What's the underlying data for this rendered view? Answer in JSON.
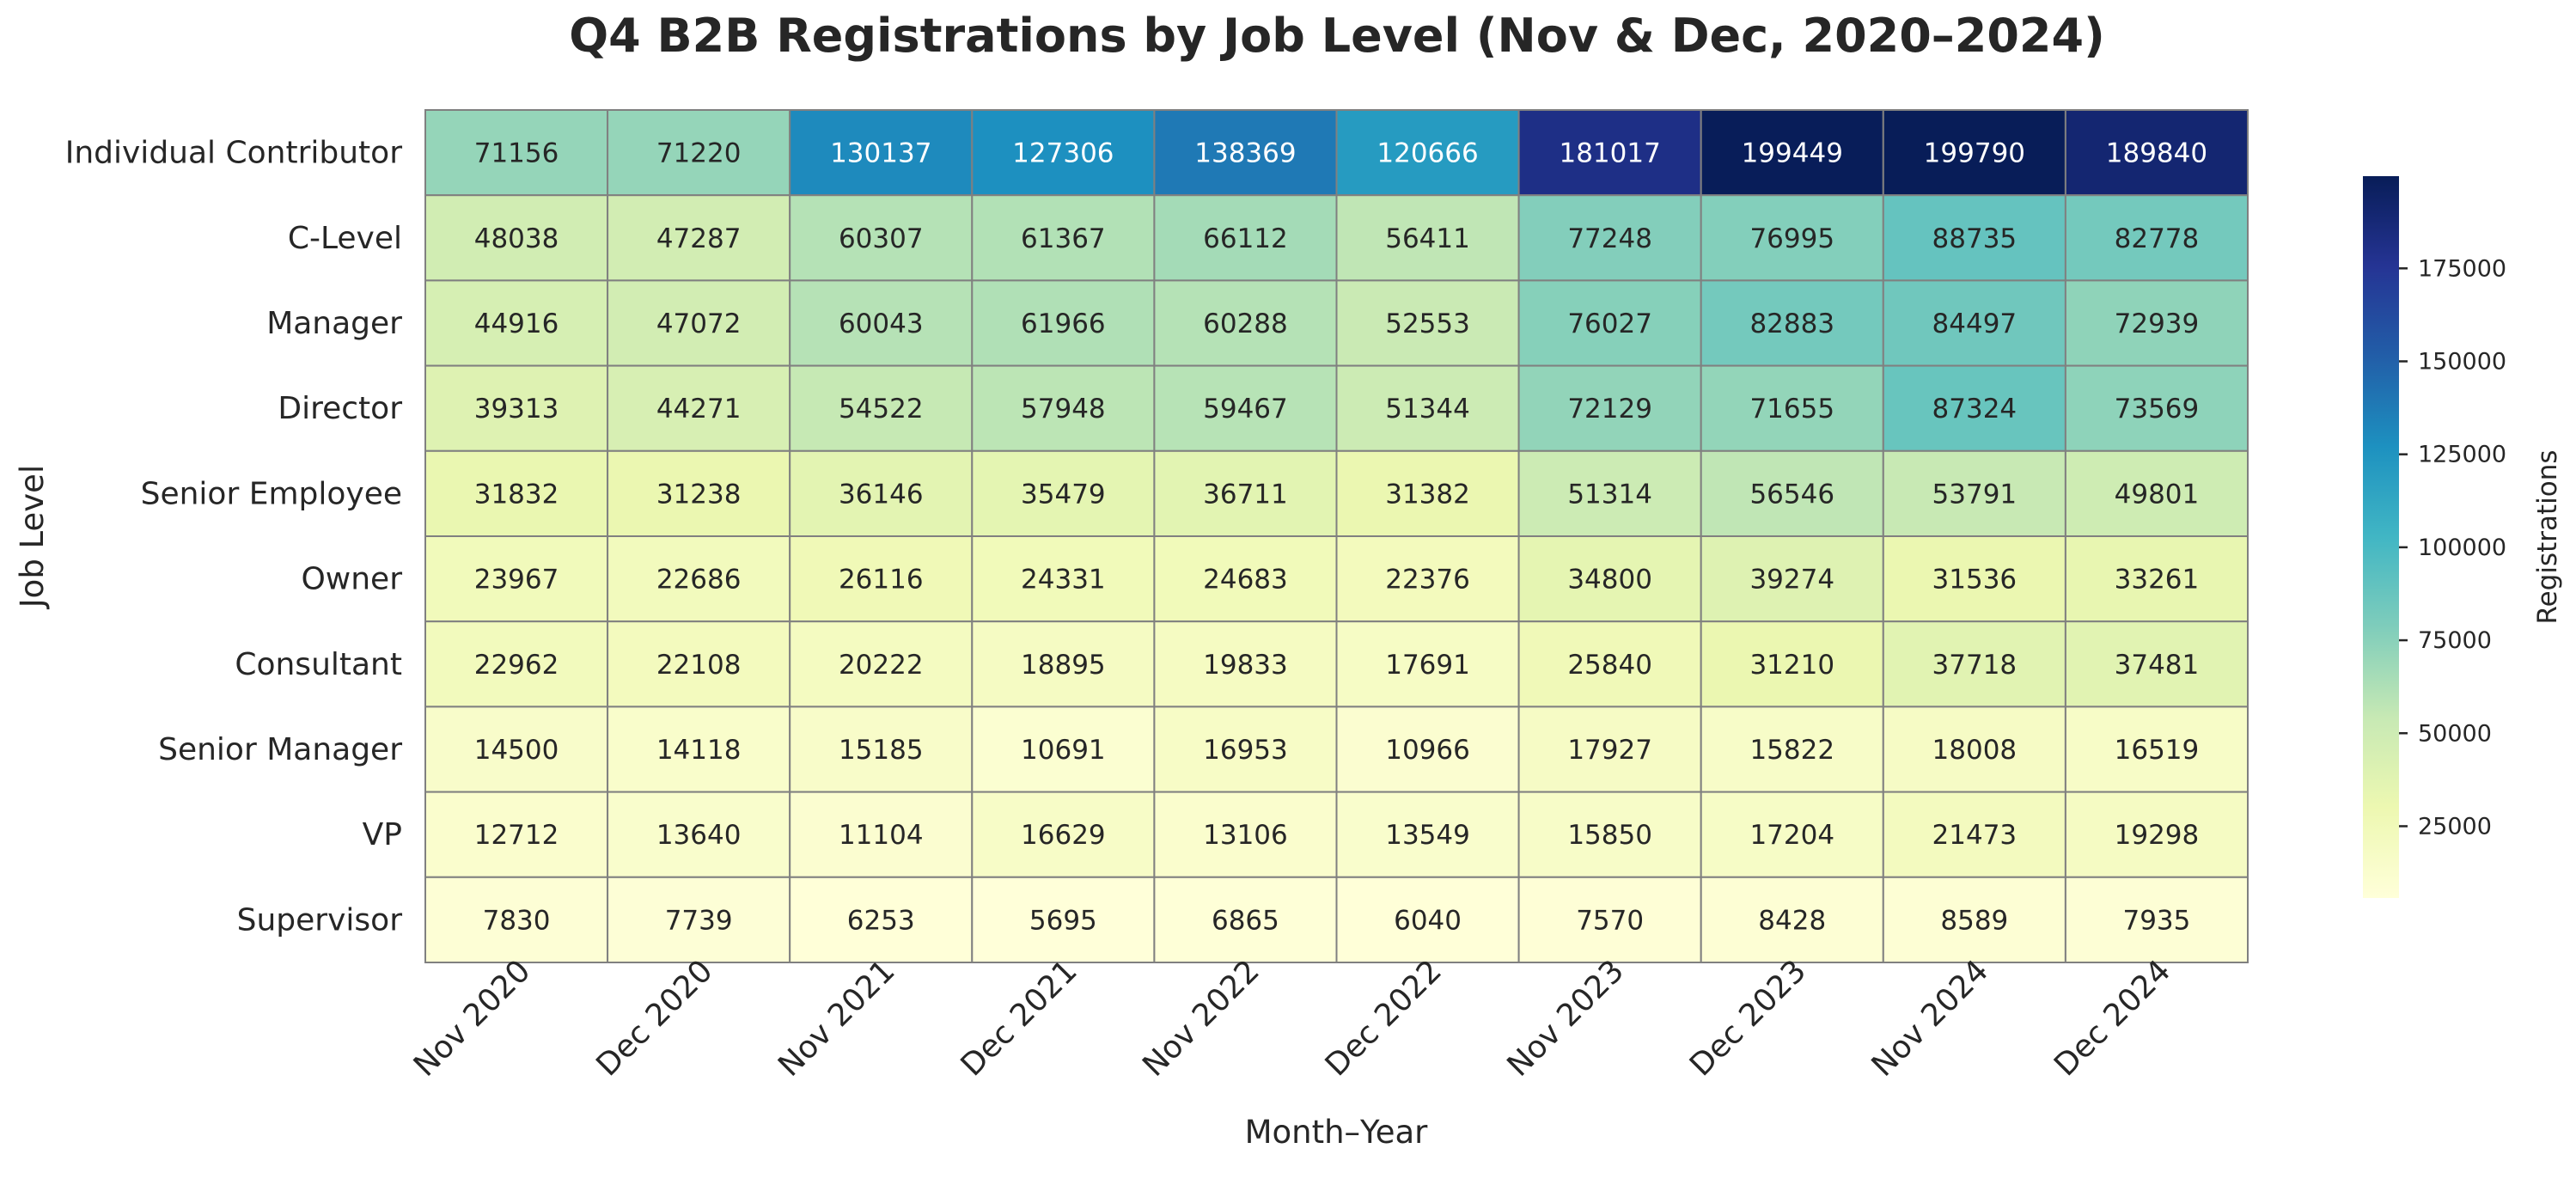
{
  "chart_data": {
    "type": "heatmap",
    "title": "Q4 B2B Registrations by Job Level (Nov & Dec, 2020–2024)",
    "xlabel": "Month–Year",
    "ylabel": "Job Level",
    "colorbar_label": "Registrations",
    "colormap": "YlGnBu",
    "colormap_stops": [
      "#ffffd9",
      "#edf8b1",
      "#c7e9b4",
      "#7fcdbb",
      "#41b6c4",
      "#1d91c0",
      "#225ea8",
      "#253494",
      "#081d58"
    ],
    "color_range": [
      5695,
      199790
    ],
    "colorbar_ticks": [
      "25000",
      "50000",
      "75000",
      "100000",
      "125000",
      "150000",
      "175000"
    ],
    "grid_line_color": "#808080",
    "columns": [
      "Nov 2020",
      "Dec 2020",
      "Nov 2021",
      "Dec 2021",
      "Nov 2022",
      "Dec 2022",
      "Nov 2023",
      "Dec 2023",
      "Nov 2024",
      "Dec 2024"
    ],
    "rows": [
      "Individual Contributor",
      "C-Level",
      "Manager",
      "Director",
      "Senior Employee",
      "Owner",
      "Consultant",
      "Senior Manager",
      "VP",
      "Supervisor"
    ],
    "values": [
      [
        71156,
        71220,
        130137,
        127306,
        138369,
        120666,
        181017,
        199449,
        199790,
        189840
      ],
      [
        48038,
        47287,
        60307,
        61367,
        66112,
        56411,
        77248,
        76995,
        88735,
        82778
      ],
      [
        44916,
        47072,
        60043,
        61966,
        60288,
        52553,
        76027,
        82883,
        84497,
        72939
      ],
      [
        39313,
        44271,
        54522,
        57948,
        59467,
        51344,
        72129,
        71655,
        87324,
        73569
      ],
      [
        31832,
        31238,
        36146,
        35479,
        36711,
        31382,
        51314,
        56546,
        53791,
        49801
      ],
      [
        23967,
        22686,
        26116,
        24331,
        24683,
        22376,
        34800,
        39274,
        31536,
        33261
      ],
      [
        22962,
        22108,
        20222,
        18895,
        19833,
        17691,
        25840,
        31210,
        37718,
        37481
      ],
      [
        14500,
        14118,
        15185,
        10691,
        16953,
        10966,
        17927,
        15822,
        18008,
        16519
      ],
      [
        12712,
        13640,
        11104,
        16629,
        13106,
        13549,
        15850,
        17204,
        21473,
        19298
      ],
      [
        7830,
        7739,
        6253,
        5695,
        6865,
        6040,
        7570,
        8428,
        8589,
        7935
      ]
    ]
  }
}
